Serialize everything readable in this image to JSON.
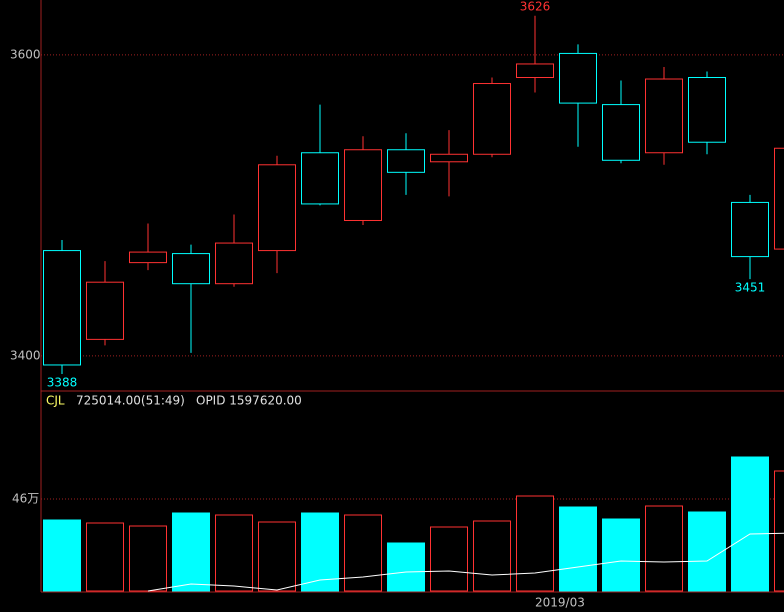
{
  "chart_data": [
    {
      "type": "candlestick",
      "up_color": "#ff3232",
      "down_color": "#00ffff",
      "grid": true,
      "categories": [
        null,
        null,
        null,
        null,
        null,
        null,
        null,
        null,
        null,
        null,
        null,
        "2019/03",
        null,
        null,
        null,
        null,
        null,
        null
      ],
      "open": [
        3470,
        3411,
        3462,
        3468,
        3448,
        3470,
        3535,
        3490,
        3537,
        3529,
        3534,
        3585,
        3601,
        3567,
        3535,
        3585,
        3502,
        3471
      ],
      "high": [
        3477,
        3463,
        3488,
        3474,
        3494,
        3533,
        3567,
        3546,
        3548,
        3550,
        3585,
        3626,
        3607,
        3583,
        3592,
        3589,
        3507,
        3540
      ],
      "low": [
        3388,
        3407,
        3457,
        3402,
        3446,
        3455,
        3500,
        3487,
        3507,
        3506,
        3532,
        3575,
        3539,
        3528,
        3527,
        3534,
        3451,
        3470
      ],
      "close": [
        3394,
        3449,
        3469,
        3448,
        3475,
        3527,
        3501,
        3537,
        3522,
        3534,
        3581,
        3594,
        3568,
        3530,
        3584,
        3542,
        3466,
        3538
      ],
      "ylim": [
        3376.7,
        3636.5
      ],
      "yticks": [
        3400,
        3600
      ],
      "annotations": [
        {
          "text": "3388",
          "index": 0,
          "value": 3388
        },
        {
          "text": "3626",
          "index": 11,
          "value": 3626
        },
        {
          "text": "3451",
          "index": 16,
          "value": 3451
        }
      ]
    },
    {
      "type": "bar",
      "grid": true,
      "ylim": [
        0,
        100
      ],
      "yticks": [
        {
          "value": 46,
          "label": "46万"
        }
      ],
      "series": [
        {
          "name": "CJL",
          "current_label": "725014.00(51:49)",
          "label_color": "#ffff66",
          "values": [
            35.5,
            34,
            32.5,
            39,
            38,
            34.5,
            39,
            38,
            24,
            32,
            35,
            47.5,
            42,
            36,
            42.5,
            39.5,
            67,
            60
          ]
        },
        {
          "name": "OPID 1597620.00",
          "type": "line",
          "color": "#ffffff",
          "values": [
            null,
            null,
            0,
            3.5,
            2.5,
            0.5,
            5.5,
            7,
            9.5,
            10,
            8,
            9,
            12,
            15,
            14.5,
            15,
            28.5,
            29
          ]
        }
      ]
    }
  ]
}
